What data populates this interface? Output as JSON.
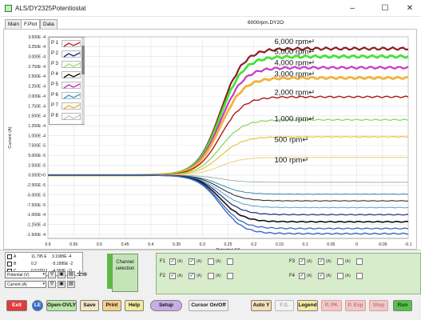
{
  "window": {
    "title": "ALS/DY2325Potentiostat",
    "minimize_glyph": "–",
    "maximize_glyph": "☐",
    "close_glyph": "✕"
  },
  "tabs": [
    {
      "label": "Main"
    },
    {
      "label": "F.Plot"
    },
    {
      "label": "Data"
    }
  ],
  "file_label": "6000rpm.DY2O",
  "legend": {
    "items": [
      {
        "label": "P 1",
        "color": "#c0262c"
      },
      {
        "label": "P 2",
        "color": "#1f2d7a"
      },
      {
        "label": "P 3",
        "color": "#a8e07c"
      },
      {
        "label": "P 4",
        "color": "#111111"
      },
      {
        "label": "P 5",
        "color": "#c032c8"
      },
      {
        "label": "P 6",
        "color": "#3aa0c8"
      },
      {
        "label": "P 7",
        "color": "#f2b33b"
      },
      {
        "label": "P 8",
        "color": "#9a9a9a"
      }
    ]
  },
  "readout": {
    "rows": [
      {
        "label": "A",
        "v1": "11.795 E",
        "v2": "3.1995E -4",
        "color": "#000000"
      },
      {
        "label": "B",
        "v1": "0.2",
        "v2": "-5.1995E -2",
        "color": "#000000"
      },
      {
        "label": "C",
        "v1": "0.537511",
        "v2": "-4.569E -11",
        "color": "#000000"
      }
    ],
    "x_axis_select": "Potential (V)",
    "y_axis_select": "Current (A)"
  },
  "channel_selection": {
    "label_line1": "Channel",
    "label_line2": "selection"
  },
  "channels": {
    "group_labels": [
      "F1",
      "F2",
      "F3",
      "F4"
    ],
    "checked_mark": "✓",
    "sub_label": "(A)"
  },
  "toolbar": {
    "exit": "Exit",
    "le": "LE",
    "open_ovly": "Open-OVLY",
    "save": "Save",
    "print": "Print",
    "help": "Help",
    "setup": "Setup",
    "cursor": "Cursor On/Off",
    "auto_y": "Auto Y",
    "fs": "F.S.",
    "legend": "Legend",
    "p_pk": "P. PK",
    "p_exp": "P. Exp",
    "stop": "Stop",
    "run": "Run"
  },
  "chart_data": {
    "type": "line",
    "xlabel": "Potential (V)",
    "ylabel": "Current (A)",
    "xlim": [
      0.6,
      -0.1
    ],
    "ylim": [
      -0.00016,
      0.00035
    ],
    "x_ticks": [
      "0.6",
      "0.55",
      "0.5",
      "0.45",
      "0.4",
      "0.35",
      "0.3",
      "0.25",
      "0.2",
      "0.15",
      "0.1",
      "0.05",
      "0",
      "-0.05",
      "-0.1"
    ],
    "y_ticks": [
      "3.500E -4",
      "3.250E -4",
      "3.000E -4",
      "2.750E -4",
      "2.500E -4",
      "2.250E -4",
      "2.000E -4",
      "1.750E -4",
      "1.500E -4",
      "1.250E -4",
      "1.000E -4",
      "7.500E -5",
      "5.000E -5",
      "2.500E -5",
      "0.000E+0",
      "-2.500E -5",
      "-5.000E -5",
      "-7.500E -5",
      "-1.000E -4",
      "-1.250E -4",
      "-1.500E -4"
    ],
    "grid": true,
    "annotations": [
      {
        "text": "6,000 rpm↵",
        "y": 0.000332
      },
      {
        "text": "5,000 rpm↵",
        "y": 0.000306
      },
      {
        "text": "4,000 rpm↵",
        "y": 0.000278
      },
      {
        "text": "3,000 rpm↵",
        "y": 0.00025
      },
      {
        "text": "2,000 rpm↵",
        "y": 0.000203
      },
      {
        "text": "1,000 rpm↵",
        "y": 0.000136
      },
      {
        "text": "500 rpm↵",
        "y": 8.4e-05
      },
      {
        "text": "100 rpm↵",
        "y": 3.2e-05
      }
    ],
    "series": [
      {
        "color": "#8b1f1f",
        "limit": 0.00032,
        "width": 2.2
      },
      {
        "color": "#45e33a",
        "limit": 0.0003,
        "width": 2.8
      },
      {
        "color": "#c83ac6",
        "limit": 0.000272,
        "width": 2.2
      },
      {
        "color": "#f2b33b",
        "limit": 0.000246,
        "width": 2.8
      },
      {
        "color": "#b01818",
        "limit": 0.000198,
        "width": 1.4
      },
      {
        "color": "#7ed85a",
        "limit": 0.00014,
        "width": 1.2
      },
      {
        "color": "#f2c23b",
        "limit": 9.7e-05,
        "width": 1.2
      },
      {
        "color": "#e8d27a",
        "limit": 4.5e-05,
        "width": 1.0
      },
      {
        "color": "#9fa7a7",
        "limit": -1.8e-05,
        "width": 0.9
      },
      {
        "color": "#3a8ab8",
        "limit": -4.8e-05,
        "width": 1.0
      },
      {
        "color": "#222222",
        "limit": -6.5e-05,
        "width": 1.0
      },
      {
        "color": "#5fa0c8",
        "limit": -8.2e-05,
        "width": 1.0
      },
      {
        "color": "#1f2d7a",
        "limit": -0.0001,
        "width": 1.2
      },
      {
        "color": "#111111",
        "limit": -0.000118,
        "width": 1.6
      },
      {
        "color": "#2a5fb0",
        "limit": -0.000135,
        "width": 1.2
      },
      {
        "color": "#3a6ac8",
        "limit": -0.000148,
        "width": 1.4
      }
    ],
    "half_wave_potential": 0.265
  }
}
